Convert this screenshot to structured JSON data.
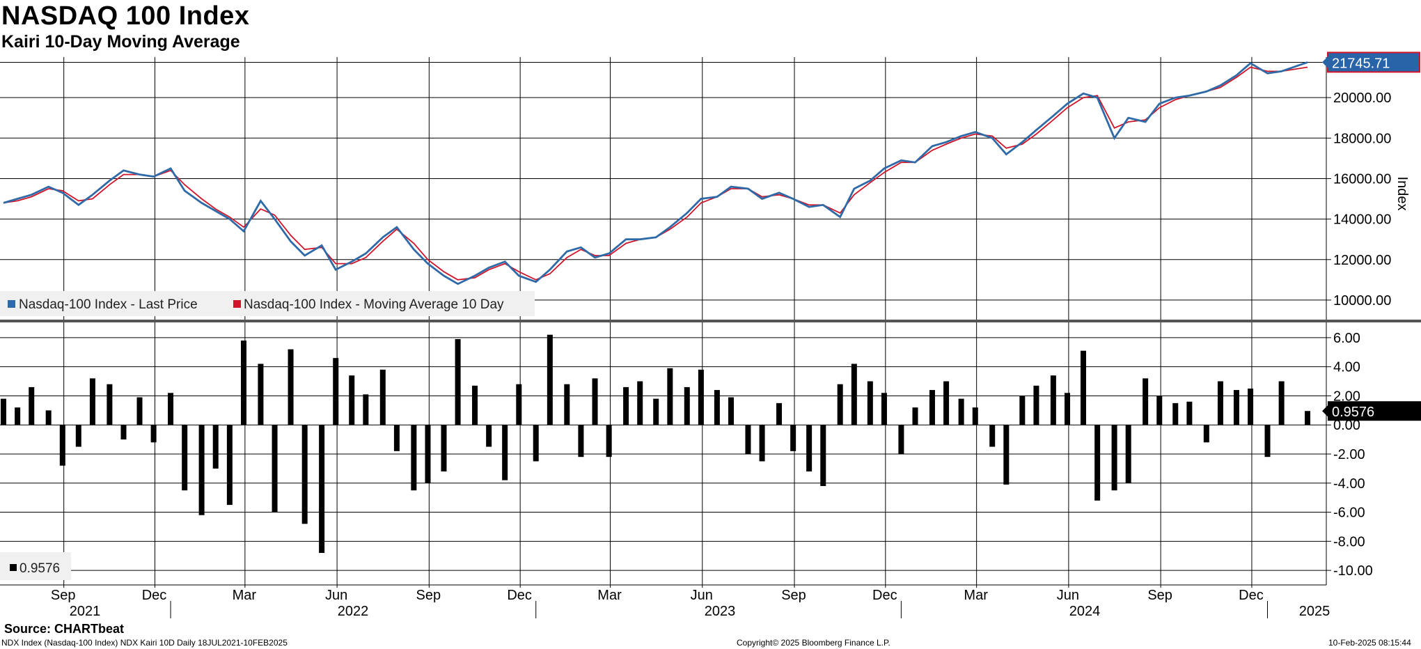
{
  "title": "NASDAQ 100 Index",
  "subtitle": "Kairi 10-Day Moving Average",
  "source": "Source: CHARTbeat",
  "footer": {
    "left": "NDX Index (Nasdaq-100 Index) NDX Kairi 10D  Daily 18JUL2021-10FEB2025",
    "center": "Copyright© 2025 Bloomberg Finance L.P.",
    "right": "10-Feb-2025 08:15:44"
  },
  "colors": {
    "price": "#2f6aa8",
    "ma": "#d0152a",
    "kairi": "#000000",
    "badge_bg": "#2a64a8"
  },
  "chart_data": [
    {
      "type": "line",
      "ylabel": "Index",
      "ylim": [
        9000,
        22000
      ],
      "yticks": [
        10000,
        12000,
        14000,
        16000,
        18000,
        20000
      ],
      "ytick_labels": [
        "10000.00",
        "12000.00",
        "14000.00",
        "16000.00",
        "18000.00",
        "20000.00"
      ],
      "last_value_label": "21745.71",
      "legend_position": "bottom-left",
      "series": [
        {
          "name": "Nasdaq-100 Index - Last Price",
          "color": "#2f6aa8",
          "x": [
            "2021-07-18",
            "2021-08-01",
            "2021-08-15",
            "2021-09-01",
            "2021-09-15",
            "2021-10-01",
            "2021-10-15",
            "2021-11-01",
            "2021-11-15",
            "2021-12-01",
            "2021-12-15",
            "2022-01-01",
            "2022-01-15",
            "2022-02-01",
            "2022-02-15",
            "2022-03-01",
            "2022-03-15",
            "2022-04-01",
            "2022-04-15",
            "2022-05-01",
            "2022-05-15",
            "2022-06-01",
            "2022-06-15",
            "2022-07-01",
            "2022-07-15",
            "2022-08-01",
            "2022-08-15",
            "2022-09-01",
            "2022-09-15",
            "2022-10-01",
            "2022-10-15",
            "2022-11-01",
            "2022-11-15",
            "2022-12-01",
            "2022-12-15",
            "2023-01-01",
            "2023-01-15",
            "2023-02-01",
            "2023-02-15",
            "2023-03-01",
            "2023-03-15",
            "2023-04-01",
            "2023-04-15",
            "2023-05-01",
            "2023-05-15",
            "2023-06-01",
            "2023-06-15",
            "2023-07-01",
            "2023-07-15",
            "2023-08-01",
            "2023-08-15",
            "2023-09-01",
            "2023-09-15",
            "2023-10-01",
            "2023-10-15",
            "2023-11-01",
            "2023-11-15",
            "2023-12-01",
            "2023-12-15",
            "2024-01-01",
            "2024-01-15",
            "2024-02-01",
            "2024-02-15",
            "2024-03-01",
            "2024-03-15",
            "2024-04-01",
            "2024-04-15",
            "2024-05-01",
            "2024-05-15",
            "2024-06-01",
            "2024-06-15",
            "2024-07-01",
            "2024-07-15",
            "2024-08-01",
            "2024-08-15",
            "2024-09-01",
            "2024-09-15",
            "2024-10-01",
            "2024-10-15",
            "2024-11-01",
            "2024-11-15",
            "2024-12-01",
            "2024-12-15",
            "2025-01-01",
            "2025-01-15",
            "2025-02-10"
          ],
          "values": [
            14800,
            15000,
            15200,
            15600,
            15300,
            14700,
            15200,
            15900,
            16400,
            16200,
            16100,
            16500,
            15400,
            14800,
            14400,
            14000,
            13400,
            14900,
            14000,
            12900,
            12200,
            12700,
            11500,
            11900,
            12300,
            13100,
            13600,
            12500,
            11800,
            11200,
            10800,
            11200,
            11600,
            11900,
            11200,
            10900,
            11500,
            12400,
            12600,
            12100,
            12300,
            13000,
            13000,
            13100,
            13600,
            14300,
            15000,
            15100,
            15600,
            15500,
            15000,
            15300,
            15000,
            14600,
            14700,
            14100,
            15500,
            15900,
            16500,
            16900,
            16800,
            17600,
            17800,
            18100,
            18300,
            18000,
            17200,
            17800,
            18400,
            19100,
            19700,
            20200,
            20000,
            18000,
            19000,
            18800,
            19700,
            20000,
            20100,
            20300,
            20600,
            21100,
            21700,
            21200,
            21300,
            21745.71
          ]
        },
        {
          "name": "Nasdaq-100 Index - Moving Average 10 Day",
          "color": "#d0152a",
          "x": [
            "2021-07-18",
            "2021-08-01",
            "2021-08-15",
            "2021-09-01",
            "2021-09-15",
            "2021-10-01",
            "2021-10-15",
            "2021-11-01",
            "2021-11-15",
            "2021-12-01",
            "2021-12-15",
            "2022-01-01",
            "2022-01-15",
            "2022-02-01",
            "2022-02-15",
            "2022-03-01",
            "2022-03-15",
            "2022-04-01",
            "2022-04-15",
            "2022-05-01",
            "2022-05-15",
            "2022-06-01",
            "2022-06-15",
            "2022-07-01",
            "2022-07-15",
            "2022-08-01",
            "2022-08-15",
            "2022-09-01",
            "2022-09-15",
            "2022-10-01",
            "2022-10-15",
            "2022-11-01",
            "2022-11-15",
            "2022-12-01",
            "2022-12-15",
            "2023-01-01",
            "2023-01-15",
            "2023-02-01",
            "2023-02-15",
            "2023-03-01",
            "2023-03-15",
            "2023-04-01",
            "2023-04-15",
            "2023-05-01",
            "2023-05-15",
            "2023-06-01",
            "2023-06-15",
            "2023-07-01",
            "2023-07-15",
            "2023-08-01",
            "2023-08-15",
            "2023-09-01",
            "2023-09-15",
            "2023-10-01",
            "2023-10-15",
            "2023-11-01",
            "2023-11-15",
            "2023-12-01",
            "2023-12-15",
            "2024-01-01",
            "2024-01-15",
            "2024-02-01",
            "2024-02-15",
            "2024-03-01",
            "2024-03-15",
            "2024-04-01",
            "2024-04-15",
            "2024-05-01",
            "2024-05-15",
            "2024-06-01",
            "2024-06-15",
            "2024-07-01",
            "2024-07-15",
            "2024-08-01",
            "2024-08-15",
            "2024-09-01",
            "2024-09-15",
            "2024-10-01",
            "2024-10-15",
            "2024-11-01",
            "2024-11-15",
            "2024-12-01",
            "2024-12-15",
            "2025-01-01",
            "2025-01-15",
            "2025-02-10"
          ],
          "values": [
            14800,
            14900,
            15100,
            15500,
            15400,
            14900,
            15000,
            15700,
            16200,
            16200,
            16100,
            16400,
            15700,
            15000,
            14500,
            14100,
            13600,
            14500,
            14200,
            13200,
            12500,
            12600,
            11800,
            11800,
            12100,
            12900,
            13500,
            12800,
            12000,
            11400,
            11000,
            11100,
            11500,
            11800,
            11400,
            11000,
            11300,
            12100,
            12500,
            12200,
            12200,
            12800,
            13000,
            13100,
            13500,
            14100,
            14800,
            15100,
            15500,
            15500,
            15100,
            15200,
            15000,
            14700,
            14700,
            14300,
            15200,
            15800,
            16300,
            16800,
            16800,
            17400,
            17700,
            18000,
            18200,
            18100,
            17500,
            17700,
            18200,
            18900,
            19500,
            20000,
            20100,
            18500,
            18800,
            18900,
            19500,
            19900,
            20100,
            20300,
            20500,
            21000,
            21500,
            21300,
            21300,
            21500
          ]
        }
      ]
    },
    {
      "type": "bar",
      "ylim": [
        -11,
        7
      ],
      "yticks": [
        -10,
        -8,
        -6,
        -4,
        -2,
        0,
        2,
        4,
        6
      ],
      "ytick_labels": [
        "-10.00",
        "-8.00",
        "-6.00",
        "-4.00",
        "-2.00",
        "0.00",
        "2.00",
        "4.00",
        "6.00"
      ],
      "last_value_label": "0.9576",
      "legend_position": "bottom-left",
      "series": [
        {
          "name": "0.9576",
          "color": "#000000",
          "x": [
            "2021-07-18",
            "2021-08-01",
            "2021-08-15",
            "2021-09-01",
            "2021-09-15",
            "2021-10-01",
            "2021-10-15",
            "2021-11-01",
            "2021-11-15",
            "2021-12-01",
            "2021-12-15",
            "2022-01-01",
            "2022-01-15",
            "2022-02-01",
            "2022-02-15",
            "2022-03-01",
            "2022-03-15",
            "2022-04-01",
            "2022-04-15",
            "2022-05-01",
            "2022-05-15",
            "2022-06-01",
            "2022-06-15",
            "2022-07-01",
            "2022-07-15",
            "2022-08-01",
            "2022-08-15",
            "2022-09-01",
            "2022-09-15",
            "2022-10-01",
            "2022-10-15",
            "2022-11-01",
            "2022-11-15",
            "2022-12-01",
            "2022-12-15",
            "2023-01-01",
            "2023-01-15",
            "2023-02-01",
            "2023-02-15",
            "2023-03-01",
            "2023-03-15",
            "2023-04-01",
            "2023-04-15",
            "2023-05-01",
            "2023-05-15",
            "2023-06-01",
            "2023-06-15",
            "2023-07-01",
            "2023-07-15",
            "2023-08-01",
            "2023-08-15",
            "2023-09-01",
            "2023-09-15",
            "2023-10-01",
            "2023-10-15",
            "2023-11-01",
            "2023-11-15",
            "2023-12-01",
            "2023-12-15",
            "2024-01-01",
            "2024-01-15",
            "2024-02-01",
            "2024-02-15",
            "2024-03-01",
            "2024-03-15",
            "2024-04-01",
            "2024-04-15",
            "2024-05-01",
            "2024-05-15",
            "2024-06-01",
            "2024-06-15",
            "2024-07-01",
            "2024-07-15",
            "2024-08-01",
            "2024-08-15",
            "2024-09-01",
            "2024-09-15",
            "2024-10-01",
            "2024-10-15",
            "2024-11-01",
            "2024-11-15",
            "2024-12-01",
            "2024-12-15",
            "2025-01-01",
            "2025-01-15",
            "2025-02-10"
          ],
          "values": [
            1.8,
            1.2,
            2.6,
            1.0,
            -2.8,
            -1.5,
            3.2,
            2.8,
            -1.0,
            1.9,
            -1.2,
            2.2,
            -4.5,
            -6.2,
            -3.0,
            -5.5,
            5.8,
            4.2,
            -6.0,
            5.2,
            -6.8,
            -8.8,
            4.6,
            3.4,
            2.1,
            3.8,
            -1.8,
            -4.5,
            -4.0,
            -3.2,
            5.9,
            2.7,
            -1.5,
            -3.8,
            2.8,
            -2.5,
            6.2,
            2.8,
            -2.2,
            3.2,
            -2.2,
            2.6,
            3.0,
            1.8,
            3.9,
            2.6,
            3.8,
            2.4,
            1.9,
            -2.0,
            -2.5,
            1.5,
            -1.8,
            -3.2,
            -4.2,
            2.8,
            4.2,
            3.0,
            2.2,
            -2.0,
            1.2,
            2.4,
            3.0,
            1.8,
            1.2,
            -1.5,
            -4.1,
            2.0,
            2.7,
            3.4,
            2.2,
            5.1,
            -5.2,
            -4.5,
            -4.0,
            3.2,
            2.0,
            1.5,
            1.6,
            -1.2,
            3.0,
            2.4,
            2.5,
            -2.2,
            3.0,
            0.9576
          ]
        }
      ]
    }
  ],
  "axes": {
    "months": [
      "Sep",
      "Dec",
      "Mar",
      "Jun",
      "Sep",
      "Dec",
      "Mar",
      "Jun",
      "Sep",
      "Dec",
      "Mar",
      "Jun",
      "Sep",
      "Dec"
    ],
    "years": [
      "2021",
      "2022",
      "2023",
      "2024",
      "2025"
    ]
  }
}
